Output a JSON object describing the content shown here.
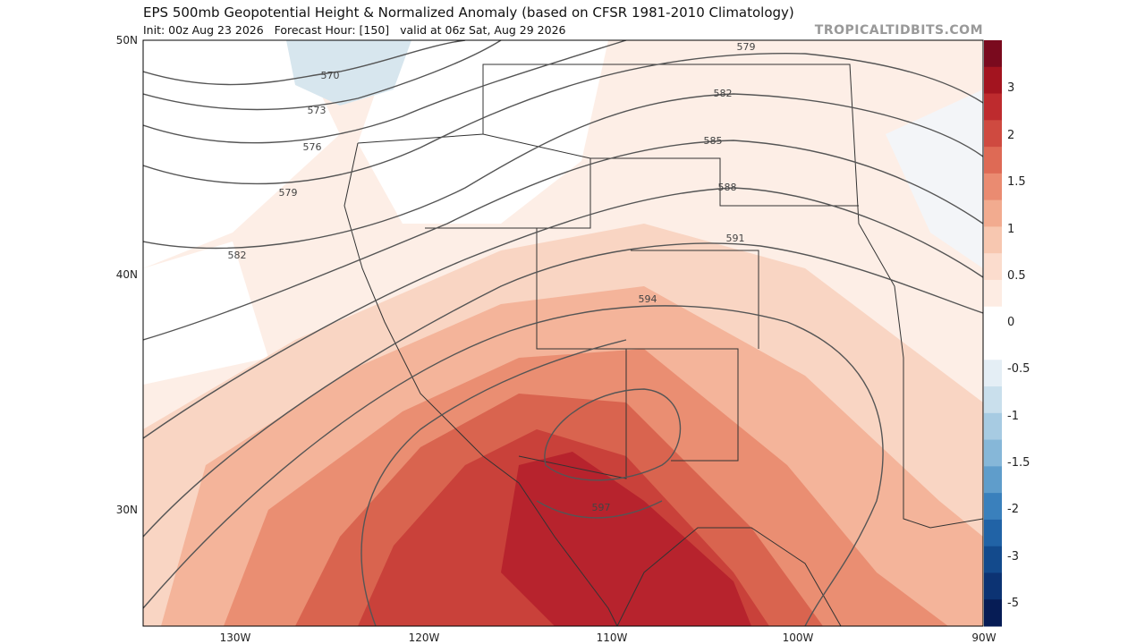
{
  "header": {
    "title": "EPS 500mb Geopotential Height & Normalized Anomaly (based on CFSR 1981-2010 Climatology)",
    "subtitle": "Init: 00z Aug 23 2026   Forecast Hour: [150]   valid at 06z Sat, Aug 29 2026",
    "watermark": "TROPICALTIDBITS.COM"
  },
  "axes": {
    "lat_labels": [
      "50N",
      "40N",
      "30N"
    ],
    "lon_labels": [
      "130W",
      "120W",
      "110W",
      "100W",
      "90W"
    ]
  },
  "contour_labels": [
    "570",
    "573",
    "576",
    "579",
    "582",
    "579",
    "582",
    "585",
    "588",
    "591",
    "594",
    "597"
  ],
  "colorbar": {
    "labels": [
      "3",
      "2",
      "1.5",
      "1",
      "0.5",
      "0",
      "-0.5",
      "-1",
      "-1.5",
      "-2",
      "-3",
      "-5"
    ]
  }
}
